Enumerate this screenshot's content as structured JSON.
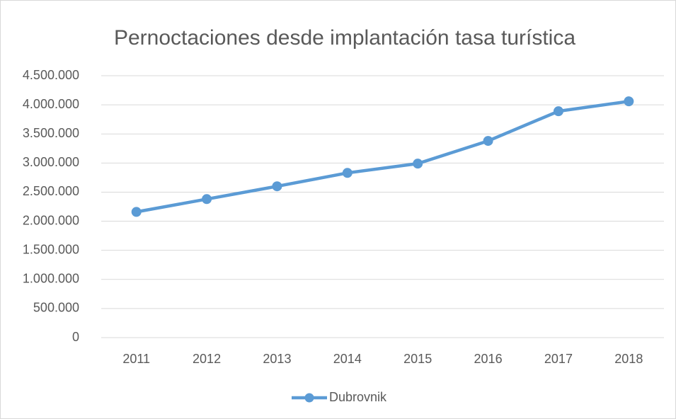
{
  "chart_data": {
    "type": "line",
    "title": "Pernoctaciones desde implantación tasa turística",
    "categories": [
      "2011",
      "2012",
      "2013",
      "2014",
      "2015",
      "2016",
      "2017",
      "2018"
    ],
    "series": [
      {
        "name": "Dubrovnik",
        "color": "#5b9bd5",
        "values": [
          2160000,
          2380000,
          2600000,
          2830000,
          2990000,
          3380000,
          3890000,
          4060000
        ]
      }
    ],
    "ylim": [
      0,
      4500000
    ],
    "yticks": [
      0,
      {
        "value": 500000,
        "label": "500.000"
      },
      {
        "value": 1000000,
        "label": "1.000.000"
      },
      {
        "value": 1500000,
        "label": "1.500.000"
      },
      {
        "value": 2000000,
        "label": "2.000.000"
      },
      {
        "value": 2500000,
        "label": "2.500.000"
      },
      {
        "value": 3000000,
        "label": "3.000.000"
      },
      {
        "value": 3500000,
        "label": "3.500.000"
      },
      {
        "value": 4000000,
        "label": "4.000.000"
      },
      {
        "value": 4500000,
        "label": "4.500.000"
      }
    ],
    "grid": true,
    "legend": "bottom"
  }
}
